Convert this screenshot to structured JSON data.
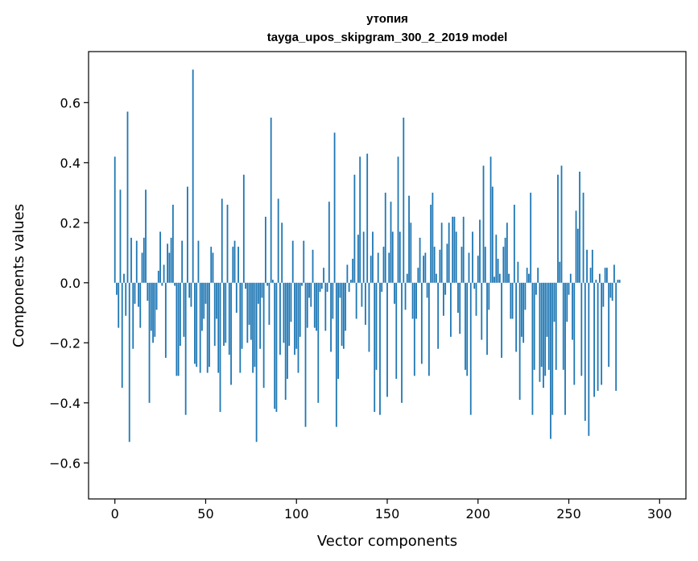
{
  "chart_data": {
    "type": "bar",
    "title": "утопия",
    "subtitle": "tayga_upos_skipgram_300_2_2019 model",
    "xlabel": "Vector components",
    "ylabel": "Components values",
    "xlim": [
      -14.5,
      314.5
    ],
    "ylim": [
      -0.72,
      0.77
    ],
    "xticks": [
      0,
      50,
      100,
      150,
      200,
      250,
      300
    ],
    "xtick_labels": [
      "0",
      "50",
      "100",
      "150",
      "200",
      "250",
      "300"
    ],
    "yticks": [
      -0.6,
      -0.4,
      -0.2,
      0.0,
      0.2,
      0.4,
      0.6
    ],
    "ytick_labels": [
      "−0.6",
      "−0.4",
      "−0.2",
      "0.0",
      "0.2",
      "0.4",
      "0.6"
    ],
    "grid": false,
    "bar_color": "#1f77b4",
    "series": [
      {
        "name": "утопия",
        "values": [
          0.42,
          -0.04,
          -0.15,
          0.31,
          -0.35,
          0.03,
          -0.11,
          0.57,
          -0.53,
          0.15,
          -0.22,
          -0.07,
          0.14,
          -0.08,
          -0.15,
          0.1,
          0.15,
          0.31,
          -0.06,
          -0.4,
          -0.16,
          -0.2,
          -0.18,
          -0.09,
          0.04,
          0.17,
          -0.01,
          0.06,
          -0.25,
          0.13,
          0.1,
          0.15,
          0.26,
          -0.01,
          -0.31,
          -0.31,
          -0.21,
          0.14,
          -0.18,
          -0.44,
          0.32,
          -0.05,
          -0.08,
          0.71,
          -0.27,
          -0.28,
          0.14,
          -0.3,
          -0.16,
          -0.12,
          -0.07,
          -0.3,
          -0.28,
          0.12,
          0.1,
          -0.21,
          -0.12,
          -0.3,
          -0.43,
          0.28,
          -0.21,
          -0.2,
          0.26,
          -0.24,
          -0.34,
          0.12,
          0.14,
          -0.1,
          0.12,
          -0.3,
          -0.22,
          0.36,
          -0.02,
          -0.2,
          -0.14,
          -0.19,
          -0.3,
          -0.28,
          -0.53,
          -0.07,
          -0.22,
          -0.05,
          -0.35,
          0.22,
          -0.01,
          -0.14,
          0.55,
          0.01,
          -0.42,
          -0.43,
          0.28,
          -0.24,
          0.2,
          -0.2,
          -0.39,
          -0.32,
          -0.21,
          -0.13,
          0.14,
          -0.24,
          -0.22,
          -0.3,
          -0.18,
          -0.01,
          0.14,
          -0.48,
          -0.15,
          -0.05,
          -0.08,
          0.11,
          -0.15,
          -0.16,
          -0.4,
          -0.03,
          -0.02,
          0.05,
          -0.16,
          -0.03,
          0.27,
          -0.23,
          -0.12,
          0.5,
          -0.48,
          -0.32,
          -0.05,
          -0.21,
          -0.22,
          -0.16,
          0.06,
          -0.03,
          0.01,
          0.08,
          0.36,
          -0.12,
          0.16,
          0.42,
          -0.08,
          0.17,
          -0.14,
          0.43,
          -0.23,
          0.09,
          0.17,
          -0.43,
          -0.29,
          0.1,
          -0.44,
          -0.03,
          0.12,
          0.3,
          -0.38,
          0.1,
          0.27,
          0.17,
          -0.07,
          -0.32,
          0.42,
          0.17,
          -0.4,
          0.55,
          -0.09,
          0.03,
          0.29,
          0.2,
          -0.12,
          -0.31,
          -0.12,
          0.05,
          0.15,
          -0.27,
          0.09,
          0.1,
          -0.05,
          -0.31,
          0.26,
          0.3,
          0.12,
          0.03,
          -0.22,
          0.11,
          0.2,
          -0.11,
          -0.04,
          0.13,
          0.2,
          -0.18,
          0.22,
          0.22,
          0.17,
          -0.1,
          -0.17,
          0.12,
          0.22,
          -0.29,
          -0.31,
          0.1,
          -0.44,
          0.17,
          -0.02,
          -0.11,
          0.09,
          0.21,
          -0.19,
          0.39,
          0.12,
          -0.24,
          -0.09,
          0.42,
          0.32,
          0.02,
          0.16,
          0.08,
          0.03,
          -0.25,
          0.12,
          0.15,
          0.2,
          0.03,
          -0.12,
          -0.12,
          0.26,
          -0.23,
          0.07,
          -0.39,
          -0.18,
          -0.2,
          -0.09,
          0.05,
          0.03,
          0.3,
          -0.44,
          -0.29,
          -0.04,
          0.05,
          -0.33,
          -0.28,
          -0.35,
          -0.31,
          -0.18,
          -0.29,
          -0.52,
          -0.44,
          -0.13,
          -0.29,
          0.36,
          0.07,
          0.39,
          -0.29,
          -0.44,
          -0.13,
          -0.04,
          0.03,
          -0.19,
          -0.34,
          0.24,
          0.18,
          0.37,
          -0.31,
          0.3,
          -0.46,
          0.11,
          -0.51,
          0.05,
          0.11,
          -0.38,
          0.01,
          -0.36,
          0.03,
          -0.34,
          -0.08,
          0.05,
          0.05,
          -0.28,
          -0.05,
          -0.06,
          0.06,
          -0.36,
          0.01,
          0.01
        ]
      }
    ]
  }
}
